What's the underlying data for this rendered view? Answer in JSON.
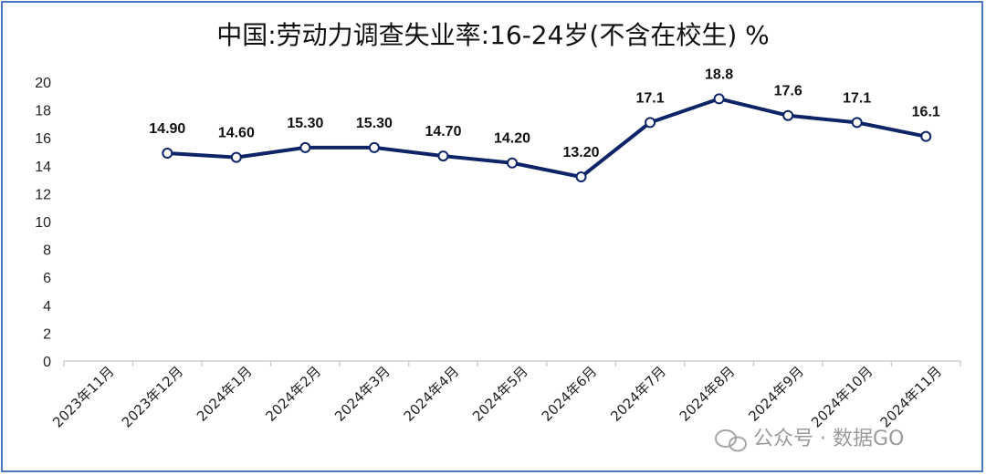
{
  "chart_data": {
    "type": "line",
    "title": "中国:劳动力调查失业率:16-24岁(不含在校生) %",
    "xlabel": "",
    "ylabel": "",
    "ylim": [
      0,
      20
    ],
    "yticks": [
      "0",
      "2",
      "4",
      "6",
      "8",
      "10",
      "12",
      "14",
      "16",
      "18",
      "20"
    ],
    "categories": [
      "2023年11月",
      "2023年12月",
      "2024年1月",
      "2024年2月",
      "2024年3月",
      "2024年4月",
      "2024年5月",
      "2024年6月",
      "2024年7月",
      "2024年8月",
      "2024年9月",
      "2024年10月",
      "2024年11月"
    ],
    "series": [
      {
        "values": [
          null,
          14.9,
          14.6,
          15.3,
          15.3,
          14.7,
          14.2,
          13.2,
          17.1,
          18.8,
          17.6,
          17.1,
          16.1
        ],
        "labels": [
          "",
          "14.90",
          "14.60",
          "15.30",
          "15.30",
          "14.70",
          "14.20",
          "13.20",
          "17.1",
          "18.8",
          "17.6",
          "17.1",
          "16.1"
        ],
        "color": "#0d2466"
      }
    ],
    "grid": false,
    "legend": "none"
  },
  "watermark": {
    "text": "公众号 · 数据GO",
    "icon": "wechat-icon"
  }
}
